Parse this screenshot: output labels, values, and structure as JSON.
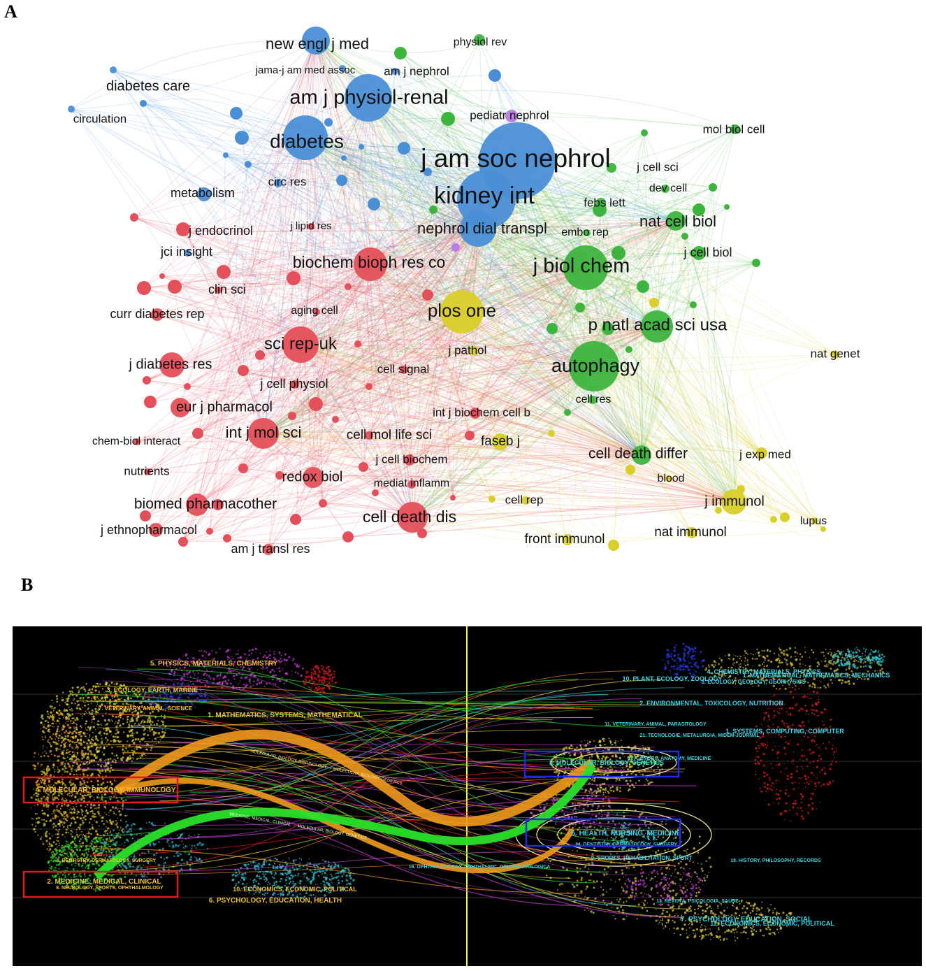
{
  "panel_a": {
    "label": "A",
    "colors": {
      "blue": "#4a8fd6",
      "green": "#3db43d",
      "red": "#e4505a",
      "yellow": "#d9cf2a",
      "purple": "#b67ee0"
    },
    "nodes": [
      {
        "label": "new engl j med",
        "color": "blue"
      },
      {
        "label": "jama-j am med assoc",
        "color": "blue"
      },
      {
        "label": "am j nephrol",
        "color": "blue"
      },
      {
        "label": "physiol rev",
        "color": "green"
      },
      {
        "label": "diabetes care",
        "color": "blue"
      },
      {
        "label": "am j physiol-renal",
        "color": "blue"
      },
      {
        "label": "circulation",
        "color": "blue"
      },
      {
        "label": "pediatr nephrol",
        "color": "purple"
      },
      {
        "label": "mol biol cell",
        "color": "green"
      },
      {
        "label": "diabetes",
        "color": "blue"
      },
      {
        "label": "j am soc nephrol",
        "color": "blue"
      },
      {
        "label": "j cell sci",
        "color": "green"
      },
      {
        "label": "circ res",
        "color": "blue"
      },
      {
        "label": "dev cell",
        "color": "green"
      },
      {
        "label": "metabolism",
        "color": "blue"
      },
      {
        "label": "kidney int",
        "color": "blue"
      },
      {
        "label": "febs lett",
        "color": "green"
      },
      {
        "label": "j endocrinol",
        "color": "red"
      },
      {
        "label": "j lipid res",
        "color": "red"
      },
      {
        "label": "nat cell biol",
        "color": "green"
      },
      {
        "label": "nephrol dial transpl",
        "color": "blue"
      },
      {
        "label": "embo rep",
        "color": "green"
      },
      {
        "label": "jci insight",
        "color": "blue"
      },
      {
        "label": "j cell biol",
        "color": "green"
      },
      {
        "label": "biochem bioph res co",
        "color": "red"
      },
      {
        "label": "j biol chem",
        "color": "green"
      },
      {
        "label": "clin sci",
        "color": "red"
      },
      {
        "label": "aging cell",
        "color": "red"
      },
      {
        "label": "curr diabetes rep",
        "color": "red"
      },
      {
        "label": "plos one",
        "color": "yellow"
      },
      {
        "label": "p natl acad sci usa",
        "color": "green"
      },
      {
        "label": "sci rep-uk",
        "color": "red"
      },
      {
        "label": "j pathol",
        "color": "yellow"
      },
      {
        "label": "nat genet",
        "color": "yellow"
      },
      {
        "label": "j diabetes res",
        "color": "red"
      },
      {
        "label": "autophagy",
        "color": "green"
      },
      {
        "label": "cell signal",
        "color": "red"
      },
      {
        "label": "j cell physiol",
        "color": "red"
      },
      {
        "label": "cell res",
        "color": "green"
      },
      {
        "label": "eur j pharmacol",
        "color": "red"
      },
      {
        "label": "int j biochem cell b",
        "color": "red"
      },
      {
        "label": "int j mol sci",
        "color": "red"
      },
      {
        "label": "chem-biol interact",
        "color": "red"
      },
      {
        "label": "cell mol life sci",
        "color": "red"
      },
      {
        "label": "faseb j",
        "color": "yellow"
      },
      {
        "label": "cell death differ",
        "color": "green"
      },
      {
        "label": "j exp med",
        "color": "yellow"
      },
      {
        "label": "j cell biochem",
        "color": "red"
      },
      {
        "label": "nutrients",
        "color": "red"
      },
      {
        "label": "redox biol",
        "color": "red"
      },
      {
        "label": "blood",
        "color": "yellow"
      },
      {
        "label": "mediat inflamm",
        "color": "red"
      },
      {
        "label": "biomed pharmacother",
        "color": "red"
      },
      {
        "label": "cell rep",
        "color": "yellow"
      },
      {
        "label": "j immunol",
        "color": "yellow"
      },
      {
        "label": "cell death dis",
        "color": "red"
      },
      {
        "label": "lupus",
        "color": "yellow"
      },
      {
        "label": "j ethnopharmacol",
        "color": "red"
      },
      {
        "label": "front immunol",
        "color": "yellow"
      },
      {
        "label": "nat immunol",
        "color": "yellow"
      },
      {
        "label": "am j transl res",
        "color": "red"
      }
    ]
  },
  "panel_b": {
    "label": "B",
    "colors": {
      "background": "#000000",
      "divider": "#ffff00",
      "left_label": "#f2c22a",
      "right_label": "#3ad6e8",
      "highlight_left": "#e11b1b",
      "highlight_right": "#1c2cf0",
      "flow_orange": "#f09a1c",
      "flow_green": "#28e028"
    },
    "left_labels": [
      "5. PHYSICS, MATERIALS, CHEMISTRY",
      "3. ECOLOGY, EARTH, MARINE",
      "7. VETERINARY, ANIMAL, SCIENCE",
      "1. MATHEMATICS, SYSTEMS, MATHEMATICAL",
      "4. MOLECULAR, BIOLOGY, IMMUNOLOGY",
      "9. DENTISTRY, DERMATOLOGY, SURGERY",
      "2. MEDICINE, MEDICAL, CLINICAL",
      "8. NEUROLOGY, SPORTS, OPHTHALMOLOGY",
      "10. ECONOMICS, ECONOMIC, POLITICAL",
      "6. PSYCHOLOGY, EDUCATION, HEALTH"
    ],
    "right_labels": [
      "4. CHEMISTRY, MATERIALS, PHYSICS",
      "1. MATHEMATICAL, MATHEMATICS, MECHANICS",
      "10. PLANT, ECOLOGY, ZOOLOGY",
      "3. ECOLOGY, GEOLOGY, GEOPHYSICS",
      "2. ENVIRONMENTAL, TOXICOLOGY, NUTRITION",
      "11. VETERINARY, ANIMAL, PARASITOLOGY",
      "21. TECNOLOGIE, METALURGIA, MIDEM-JOURNAL",
      "1. SYSTEMS, COMPUTING, COMPUTER",
      "8. MOLECULAR, BIOLOGY, GENETICS",
      "20. GENETIC, ANATOMY, MEDICINE",
      "5. HEALTH, NURSING, MEDICINE",
      "14. DENTISTRY, DERMATOLOGY, SURGERY",
      "9. SPORTS, REHABILITATION, SPORT",
      "16. OPHTHALMOLOGY, OPHTHALMIC, OPHTHALMOLOGICA",
      "18. HISTORY, PHILOSOPHY, RECORDS",
      "13. REVISTA, PSICOLOGIA, SAUDE",
      "7. PSYCHOLOGY, EDUCATION, SOCIAL",
      "12. ECONOMICS, ECONOMIC, POLITICAL"
    ],
    "flow_labels": [
      "MOLECULAR, BIOLOGY, IMMUNOLOGY → MOLECULAR, BIOLOGY, GENETICS",
      "MEDICINE, MEDICAL, CLINICAL → MOLECULAR, BIOLOGY, GENETICS"
    ]
  }
}
